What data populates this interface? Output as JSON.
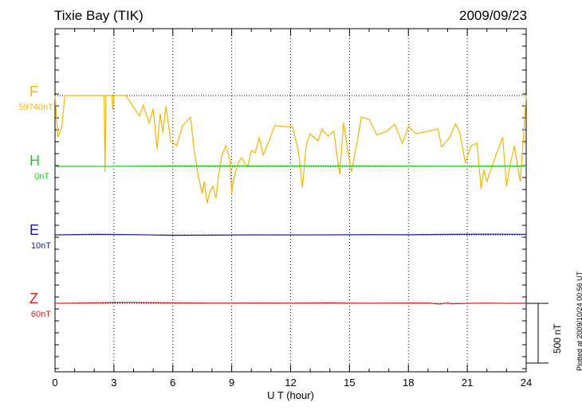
{
  "header": {
    "station": "Tixie Bay (TIK)",
    "date": "2009/09/23"
  },
  "footer": {
    "plotted_at": "Plotted at 2009/10/24 00:56 UT",
    "scale_label": "500 nT"
  },
  "colors": {
    "F": "#f5b400",
    "H": "#22cc22",
    "E": "#1a1aaa",
    "Z": "#d42020",
    "axis": "#000000"
  },
  "chart_data": {
    "type": "line",
    "xlabel": "U T (hour)",
    "xlim": [
      0,
      24
    ],
    "xticks": [
      "0",
      "3",
      "6",
      "9",
      "12",
      "15",
      "18",
      "21",
      "24"
    ],
    "scale_bar_nT": 500,
    "grid": "dotted vertical lines every 3 hours",
    "channels": [
      {
        "name": "F",
        "baseline": "59740nT"
      },
      {
        "name": "H",
        "baseline": "0nT"
      },
      {
        "name": "E",
        "baseline": "10nT"
      },
      {
        "name": "Z",
        "baseline": "60nT"
      }
    ],
    "series": [
      {
        "name": "F",
        "note": "baseline near 59740 nT with frequent downward data dropouts",
        "x": [
          0.0,
          0.15,
          0.35,
          0.5,
          2.5,
          2.55,
          2.6,
          2.9,
          2.95,
          3.0,
          3.6,
          4.3,
          4.5,
          4.8,
          5.0,
          5.2,
          5.35,
          5.5,
          5.65,
          5.9,
          6.2,
          6.5,
          6.9,
          7.1,
          7.3,
          7.5,
          7.6,
          7.75,
          7.9,
          8.05,
          8.2,
          8.35,
          8.5,
          8.7,
          8.9,
          9.0,
          9.1,
          9.3,
          9.5,
          9.8,
          10.0,
          10.2,
          10.4,
          10.6,
          10.9,
          11.2,
          11.6,
          12.1,
          12.4,
          12.6,
          12.8,
          13.0,
          13.4,
          13.6,
          13.9,
          14.2,
          14.5,
          14.7,
          14.9,
          15.1,
          15.4,
          15.6,
          16.0,
          16.4,
          16.9,
          17.3,
          17.7,
          18.0,
          18.4,
          19.0,
          19.5,
          19.7,
          20.1,
          20.4,
          20.6,
          20.9,
          21.2,
          21.5,
          21.7,
          21.85,
          22.0,
          22.2,
          22.5,
          22.8,
          23.0,
          23.2,
          23.4,
          23.5,
          23.7,
          23.85,
          24.0
        ],
        "y": [
          0,
          -350,
          -260,
          0,
          0,
          -640,
          0,
          0,
          -120,
          0,
          0,
          -170,
          -80,
          -230,
          -110,
          -450,
          -150,
          -310,
          -90,
          -380,
          -420,
          -250,
          -180,
          -470,
          -680,
          -820,
          -720,
          -900,
          -800,
          -760,
          -860,
          -650,
          -500,
          -420,
          -530,
          -820,
          -700,
          -580,
          -520,
          -600,
          -460,
          -480,
          -350,
          -500,
          -380,
          -250,
          -260,
          -260,
          -470,
          -770,
          -410,
          -320,
          -380,
          -280,
          -340,
          -300,
          -660,
          -230,
          -450,
          -640,
          -380,
          -180,
          -200,
          -330,
          -300,
          -240,
          -400,
          -260,
          -320,
          -300,
          -280,
          -430,
          -350,
          -240,
          -300,
          -560,
          -420,
          -400,
          -780,
          -620,
          -720,
          -620,
          -480,
          -350,
          -760,
          -560,
          -420,
          -530,
          -720,
          -380,
          0
        ]
      },
      {
        "name": "H",
        "x": [
          0,
          2,
          4,
          6,
          8,
          10,
          12,
          14,
          16,
          18,
          20,
          22,
          24
        ],
        "y": [
          0,
          0,
          2,
          4,
          4,
          4,
          4,
          5,
          4,
          3,
          2,
          3,
          4
        ]
      },
      {
        "name": "E",
        "x": [
          0,
          2,
          4,
          6,
          8,
          10,
          12,
          14,
          16,
          18,
          20,
          22,
          24
        ],
        "y": [
          0,
          5,
          2,
          -4,
          -3,
          0,
          -1,
          0,
          2,
          1,
          4,
          6,
          5
        ]
      },
      {
        "name": "Z",
        "x": [
          0,
          1,
          2,
          3,
          4,
          5,
          6,
          7,
          8,
          9,
          10,
          11,
          12,
          13,
          14,
          15,
          16,
          17,
          18,
          19,
          19.6,
          20,
          20.2,
          21,
          22,
          23,
          24
        ],
        "y": [
          0,
          2,
          4,
          7,
          8,
          6,
          4,
          3,
          2,
          2,
          3,
          3,
          2,
          3,
          4,
          2,
          1,
          2,
          3,
          3,
          -6,
          4,
          -4,
          0,
          2,
          0,
          1
        ]
      }
    ]
  }
}
